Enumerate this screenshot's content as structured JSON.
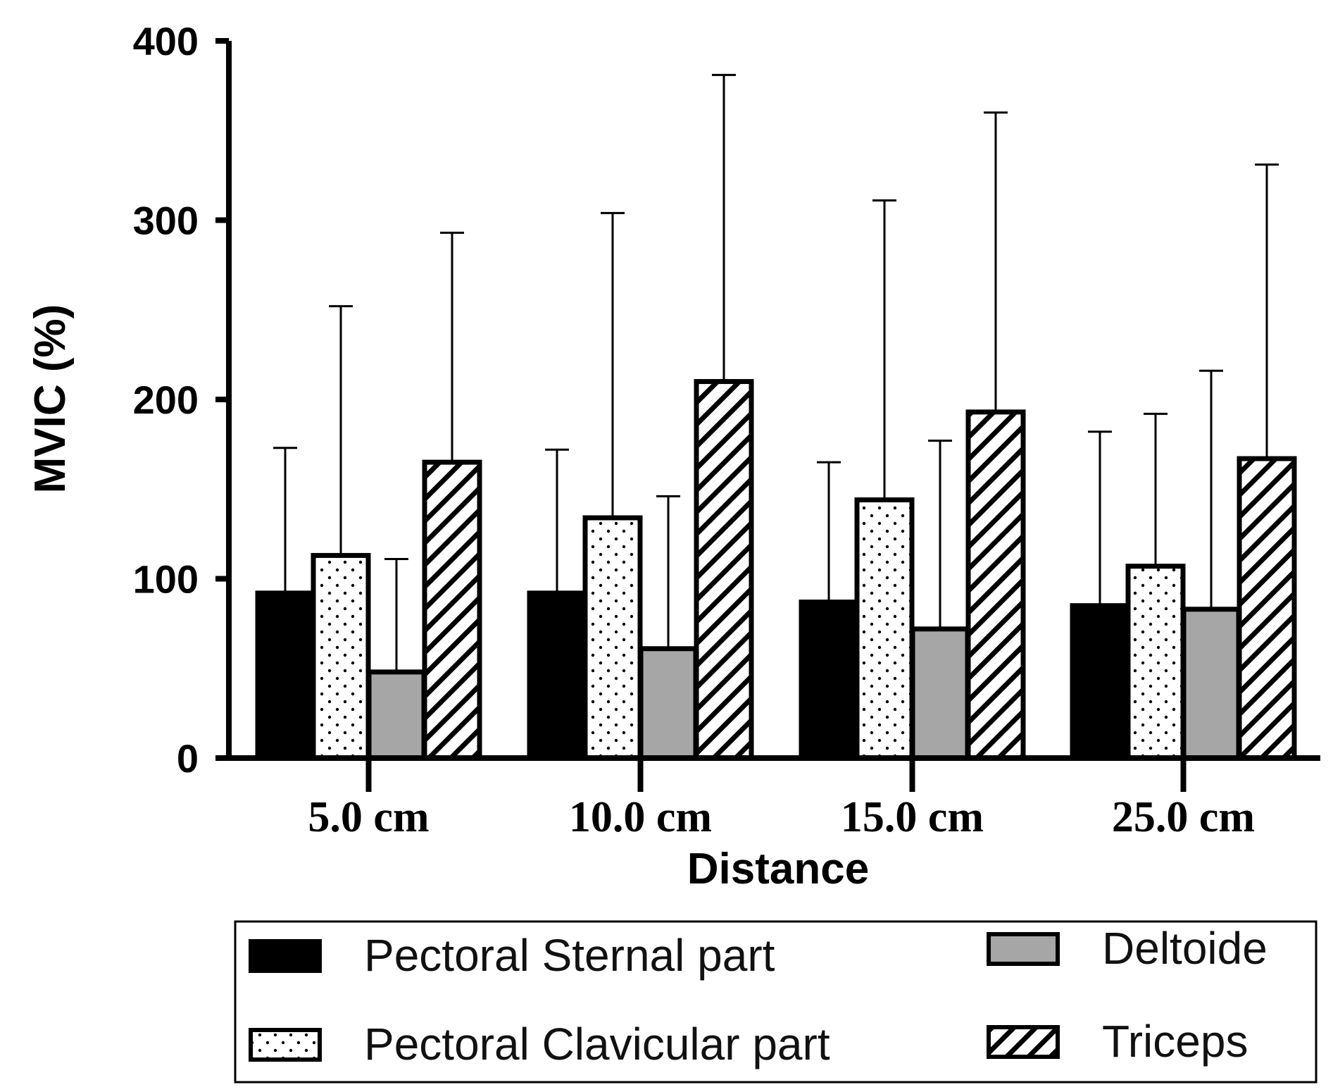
{
  "chart_data": {
    "type": "bar",
    "title": "",
    "xlabel": "Distance",
    "ylabel": "MVIC (%)",
    "ylim": [
      0,
      400
    ],
    "yticks": [
      0,
      100,
      200,
      300,
      400
    ],
    "categories": [
      "5.0 cm",
      "10.0 cm",
      "15.0 cm",
      "25.0 cm"
    ],
    "error_bars": "upper, one-sided",
    "series": [
      {
        "name": "Pectoral Sternal part",
        "pattern": "solid-black",
        "color": "#000000",
        "values": [
          92,
          92,
          87,
          85
        ],
        "errors_upper": [
          81,
          80,
          78,
          97
        ]
      },
      {
        "name": "Pectoral Clavicular part",
        "pattern": "dotted",
        "color": "#ffffff",
        "values": [
          113,
          134,
          144,
          107
        ],
        "errors_upper": [
          139,
          170,
          167,
          85
        ]
      },
      {
        "name": "Deltoide",
        "pattern": "solid-gray",
        "color": "#a6a6a6",
        "values": [
          48,
          61,
          72,
          83
        ],
        "errors_upper": [
          63,
          85,
          105,
          133
        ]
      },
      {
        "name": "Triceps",
        "pattern": "diagonal-hatch",
        "color": "#ffffff",
        "values": [
          165,
          210,
          193,
          167
        ],
        "errors_upper": [
          128,
          171,
          167,
          164
        ]
      }
    ],
    "legend": {
      "position": "bottom",
      "columns": 2,
      "order": [
        0,
        2,
        1,
        3
      ]
    },
    "grid": false
  }
}
